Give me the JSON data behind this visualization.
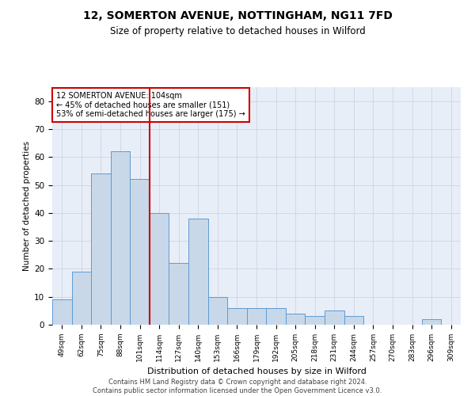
{
  "title": "12, SOMERTON AVENUE, NOTTINGHAM, NG11 7FD",
  "subtitle": "Size of property relative to detached houses in Wilford",
  "xlabel": "Distribution of detached houses by size in Wilford",
  "ylabel": "Number of detached properties",
  "categories": [
    "49sqm",
    "62sqm",
    "75sqm",
    "88sqm",
    "101sqm",
    "114sqm",
    "127sqm",
    "140sqm",
    "153sqm",
    "166sqm",
    "179sqm",
    "192sqm",
    "205sqm",
    "218sqm",
    "231sqm",
    "244sqm",
    "257sqm",
    "270sqm",
    "283sqm",
    "296sqm",
    "309sqm"
  ],
  "values": [
    9,
    19,
    54,
    62,
    52,
    40,
    22,
    38,
    10,
    6,
    6,
    6,
    4,
    3,
    5,
    3,
    0,
    0,
    0,
    2,
    0
  ],
  "bar_color": "#c8d8e8",
  "bar_edge_color": "#5b9bd5",
  "bar_edge_width": 0.7,
  "vline_x": 4.5,
  "vline_color": "#cc0000",
  "annotation_text": "12 SOMERTON AVENUE: 104sqm\n← 45% of detached houses are smaller (151)\n53% of semi-detached houses are larger (175) →",
  "annotation_box_color": "#ffffff",
  "annotation_box_edge_color": "#cc0000",
  "ylim": [
    0,
    85
  ],
  "yticks": [
    0,
    10,
    20,
    30,
    40,
    50,
    60,
    70,
    80
  ],
  "grid_color": "#d0d8e8",
  "background_color": "#e8eef8",
  "footer": "Contains HM Land Registry data © Crown copyright and database right 2024.\nContains public sector information licensed under the Open Government Licence v3.0."
}
